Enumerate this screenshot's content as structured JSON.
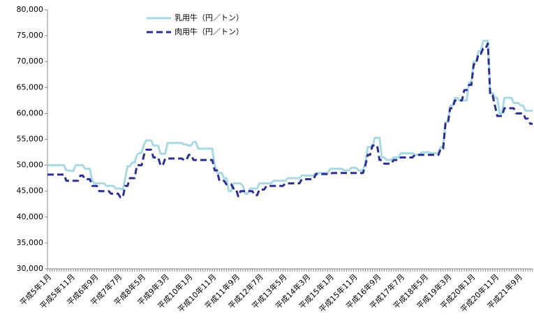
{
  "chart_data": {
    "type": "line",
    "categories": [
      "平成5年1月",
      null,
      null,
      null,
      null,
      null,
      null,
      null,
      null,
      null,
      "平成5年11月",
      null,
      null,
      null,
      null,
      null,
      null,
      null,
      null,
      null,
      "平成6年9月",
      null,
      null,
      null,
      null,
      null,
      null,
      null,
      null,
      null,
      "平成7年7月",
      null,
      null,
      null,
      null,
      null,
      null,
      null,
      null,
      null,
      "平成8年5月",
      null,
      null,
      null,
      null,
      null,
      null,
      null,
      null,
      null,
      "平成9年3月",
      null,
      null,
      null,
      null,
      null,
      null,
      null,
      null,
      null,
      "平成10年1月",
      null,
      null,
      null,
      null,
      null,
      null,
      null,
      null,
      null,
      "平成10年11月",
      null,
      null,
      null,
      null,
      null,
      null,
      null,
      null,
      null,
      "平成11年9月",
      null,
      null,
      null,
      null,
      null,
      null,
      null,
      null,
      null,
      "平成12年7月",
      null,
      null,
      null,
      null,
      null,
      null,
      null,
      null,
      null,
      "平成13年5月",
      null,
      null,
      null,
      null,
      null,
      null,
      null,
      null,
      null,
      "平成14年3月",
      null,
      null,
      null,
      null,
      null,
      null,
      null,
      null,
      null,
      "平成15年1月",
      null,
      null,
      null,
      null,
      null,
      null,
      null,
      null,
      null,
      "平成15年11月",
      null,
      null,
      null,
      null,
      null,
      null,
      null,
      null,
      null,
      "平成16年9月",
      null,
      null,
      null,
      null,
      null,
      null,
      null,
      null,
      null,
      "平成17年7月",
      null,
      null,
      null,
      null,
      null,
      null,
      null,
      null,
      null,
      "平成18年5月",
      null,
      null,
      null,
      null,
      null,
      null,
      null,
      null,
      null,
      "平成19年3月",
      null,
      null,
      null,
      null,
      null,
      null,
      null,
      null,
      null,
      "平成20年1月",
      null,
      null,
      null,
      null,
      null,
      null,
      null,
      null,
      null,
      "平成20年11月",
      null,
      null,
      null,
      null,
      null,
      null,
      null,
      null,
      null,
      "平成21年9月",
      null,
      null,
      null,
      null,
      null,
      null
    ],
    "series": [
      {
        "name": "乳用牛（円／トン）",
        "color": "#a9d9e3",
        "dash": false,
        "values": [
          50000,
          50000,
          50000,
          50000,
          50000,
          50000,
          50000,
          50000,
          49000,
          49000,
          48900,
          48900,
          50000,
          50000,
          50000,
          50000,
          49300,
          49300,
          49300,
          47000,
          46500,
          46500,
          46500,
          46500,
          46500,
          46000,
          46000,
          46000,
          46000,
          45500,
          45500,
          45500,
          45300,
          47500,
          49800,
          49800,
          50500,
          50500,
          52000,
          52300,
          52500,
          54000,
          54800,
          54800,
          54800,
          53800,
          53800,
          53800,
          52200,
          52200,
          52200,
          54300,
          54300,
          54300,
          54300,
          54300,
          54300,
          54300,
          54000,
          54000,
          53800,
          53800,
          54500,
          54500,
          53200,
          53200,
          53200,
          53200,
          53200,
          53200,
          53200,
          50000,
          48500,
          48500,
          48500,
          47500,
          47500,
          45000,
          45000,
          46500,
          46500,
          46500,
          46500,
          46000,
          44500,
          44500,
          45500,
          45500,
          45500,
          45500,
          46500,
          46500,
          46500,
          46500,
          46500,
          46500,
          47000,
          47000,
          47000,
          47000,
          47000,
          47000,
          47500,
          47500,
          47500,
          47500,
          47500,
          47500,
          48000,
          48000,
          48000,
          48000,
          48000,
          48000,
          48500,
          48500,
          48500,
          48500,
          48500,
          48500,
          49300,
          49300,
          49300,
          49300,
          49300,
          49300,
          49000,
          49000,
          49000,
          49500,
          49500,
          49500,
          49000,
          49000,
          49000,
          50500,
          53500,
          53500,
          53500,
          55300,
          55300,
          55300,
          51500,
          51500,
          51000,
          51000,
          51000,
          51500,
          51500,
          51500,
          52300,
          52300,
          52300,
          52300,
          52300,
          52300,
          52000,
          52000,
          52000,
          52500,
          52500,
          52500,
          52500,
          52300,
          52300,
          52300,
          52300,
          53500,
          53500,
          58300,
          58300,
          61500,
          61500,
          63000,
          63000,
          62500,
          62500,
          62500,
          62500,
          66000,
          66000,
          70000,
          70000,
          72000,
          72000,
          74000,
          74000,
          74000,
          64000,
          64000,
          63000,
          63000,
          60000,
          60000,
          63000,
          63000,
          63000,
          63000,
          62000,
          62000,
          62000,
          61500,
          61500,
          60500,
          60500,
          60500,
          60500
        ]
      },
      {
        "name": "肉用牛（円／トン）",
        "color": "#2b2f8f",
        "dash": true,
        "values": [
          48200,
          48200,
          48200,
          48200,
          48200,
          48200,
          48200,
          48200,
          47000,
          47000,
          47000,
          47000,
          47000,
          47000,
          48000,
          48000,
          47300,
          47300,
          47300,
          46000,
          46000,
          46000,
          45000,
          45000,
          45000,
          45000,
          45000,
          44500,
          44500,
          44500,
          44500,
          43800,
          43800,
          46000,
          46000,
          47500,
          47500,
          47500,
          50000,
          50000,
          50000,
          52000,
          53000,
          53000,
          53000,
          51500,
          51500,
          51500,
          50000,
          50000,
          51300,
          51300,
          51300,
          51300,
          51300,
          51300,
          51300,
          51300,
          51000,
          51000,
          52000,
          52000,
          51000,
          51000,
          51000,
          51000,
          51000,
          51000,
          51000,
          51000,
          51000,
          49000,
          49000,
          47000,
          47000,
          47000,
          46300,
          46300,
          46300,
          45500,
          45500,
          44000,
          45000,
          45000,
          45000,
          45000,
          45000,
          45000,
          44200,
          44200,
          45300,
          45300,
          45300,
          46000,
          46000,
          46000,
          46000,
          46000,
          46000,
          46000,
          46000,
          46500,
          46500,
          46500,
          46500,
          46500,
          46500,
          46500,
          47300,
          47300,
          47300,
          47300,
          47300,
          47300,
          48300,
          48300,
          48300,
          48300,
          48300,
          48300,
          48300,
          48500,
          48500,
          48500,
          48500,
          48500,
          48500,
          48500,
          48500,
          48500,
          48500,
          48500,
          48500,
          48500,
          48500,
          50000,
          52000,
          52000,
          53800,
          53800,
          53800,
          51000,
          51000,
          50300,
          50300,
          50300,
          50300,
          51000,
          51000,
          51000,
          51500,
          51500,
          51500,
          51500,
          51500,
          51500,
          52000,
          52000,
          52000,
          52000,
          52000,
          52000,
          52000,
          52000,
          52000,
          52000,
          52000,
          53200,
          53200,
          58000,
          58000,
          61000,
          61000,
          62500,
          62500,
          62500,
          62500,
          64500,
          64500,
          65500,
          65500,
          69500,
          69500,
          71500,
          71500,
          72500,
          72500,
          73500,
          63500,
          63500,
          61500,
          59500,
          59500,
          59500,
          61000,
          61000,
          61000,
          61000,
          61000,
          60000,
          60000,
          60000,
          60000,
          59000,
          59000,
          58000,
          58000
        ]
      }
    ],
    "ylim": [
      30000,
      80000
    ],
    "yticks": [
      {
        "value": 30000,
        "label": "30,000"
      },
      {
        "value": 35000,
        "label": "35,000"
      },
      {
        "value": 40000,
        "label": "40,000"
      },
      {
        "value": 45000,
        "label": "45,000"
      },
      {
        "value": 50000,
        "label": "50,000"
      },
      {
        "value": 55000,
        "label": "55,000"
      },
      {
        "value": 60000,
        "label": "60,000"
      },
      {
        "value": 65000,
        "label": "65,000"
      },
      {
        "value": 70000,
        "label": "70,000"
      },
      {
        "value": 75000,
        "label": "75,000"
      },
      {
        "value": 80000,
        "label": "80,000"
      }
    ],
    "grid": false,
    "legend": "top-left"
  }
}
